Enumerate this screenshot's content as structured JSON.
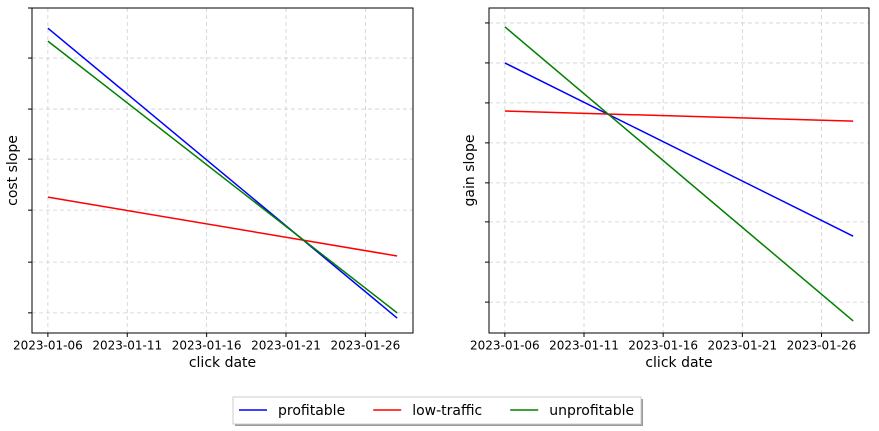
{
  "chart_data": [
    {
      "type": "line",
      "xlabel": "click date",
      "ylabel": "cost slope",
      "x": [
        "2023-01-06",
        "2023-01-28"
      ],
      "xlim": [
        "2023-01-05",
        "2023-01-29"
      ],
      "xticks": [
        "2023-01-06",
        "2023-01-11",
        "2023-01-16",
        "2023-01-21",
        "2023-01-26"
      ],
      "ylim": [
        0,
        100
      ],
      "yticks": [
        6.2,
        21.8,
        37.8,
        53.5,
        68.9,
        84.6,
        100
      ],
      "grid": true,
      "series": [
        {
          "name": "profitable",
          "color": "#0000ff",
          "values": [
            93.8,
            4.6
          ]
        },
        {
          "name": "low-traffic",
          "color": "#ff0000",
          "values": [
            41.8,
            23.7
          ]
        },
        {
          "name": "unprofitable",
          "color": "#008000",
          "values": [
            89.8,
            6.2
          ]
        }
      ]
    },
    {
      "type": "line",
      "xlabel": "click date",
      "ylabel": "gain slope",
      "x": [
        "2023-01-06",
        "2023-01-28"
      ],
      "xlim": [
        "2023-01-05",
        "2023-01-29"
      ],
      "xticks": [
        "2023-01-06",
        "2023-01-11",
        "2023-01-16",
        "2023-01-21",
        "2023-01-26"
      ],
      "ylim": [
        0,
        100
      ],
      "yticks": [
        9.5,
        21.8,
        34.2,
        46.2,
        58.5,
        70.8,
        83.1,
        95.4
      ],
      "grid": true,
      "series": [
        {
          "name": "profitable",
          "color": "#0000ff",
          "values": [
            83.1,
            29.8
          ]
        },
        {
          "name": "low-traffic",
          "color": "#ff0000",
          "values": [
            68.3,
            65.2
          ]
        },
        {
          "name": "unprofitable",
          "color": "#008000",
          "values": [
            94.2,
            3.7
          ]
        }
      ]
    }
  ]
}
